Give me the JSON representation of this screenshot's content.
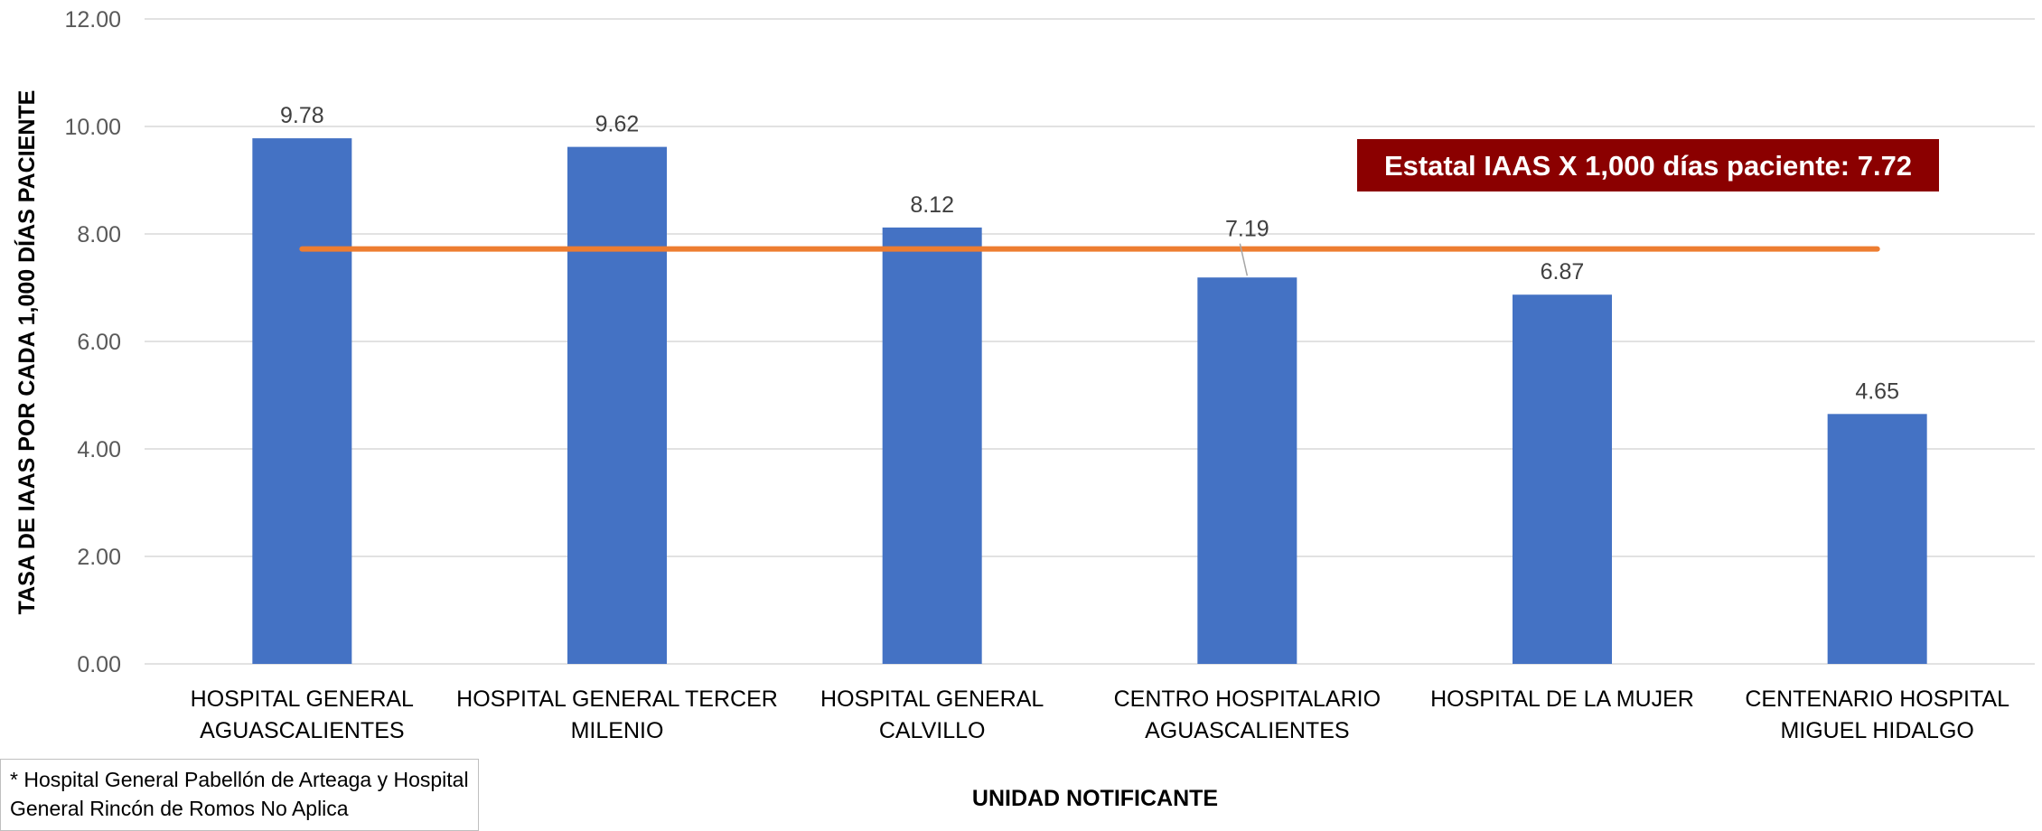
{
  "chart_data": {
    "type": "bar",
    "title": "",
    "xlabel": "UNIDAD NOTIFICANTE",
    "ylabel": "TASA DE IAAS POR CADA 1,000 DÍAS PACIENTE",
    "ylim": [
      0,
      12
    ],
    "yticks": [
      "0.00",
      "2.00",
      "4.00",
      "6.00",
      "8.00",
      "10.00",
      "12.00"
    ],
    "grid": true,
    "categories": [
      [
        "HOSPITAL GENERAL",
        "AGUASCALIENTES"
      ],
      [
        "HOSPITAL GENERAL TERCER",
        "MILENIO"
      ],
      [
        "HOSPITAL GENERAL",
        "CALVILLO"
      ],
      [
        "CENTRO HOSPITALARIO",
        "AGUASCALIENTES"
      ],
      [
        "HOSPITAL DE LA MUJER"
      ],
      [
        "CENTENARIO HOSPITAL",
        "MIGUEL HIDALGO"
      ]
    ],
    "values": [
      9.78,
      9.62,
      8.12,
      7.19,
      6.87,
      4.65
    ],
    "value_labels": [
      "9.78",
      "9.62",
      "8.12",
      "7.19",
      "6.87",
      "4.65"
    ],
    "bar_color": "#4472C4",
    "reference_line": {
      "value": 7.72,
      "color": "#ED7D31",
      "label": "Estatal IAAS X 1,000 días paciente: 7.72",
      "label_bg": "#8B0000"
    }
  },
  "footnote": "* Hospital General Pabellón de Arteaga y Hospital General Rincón de Romos No Aplica"
}
